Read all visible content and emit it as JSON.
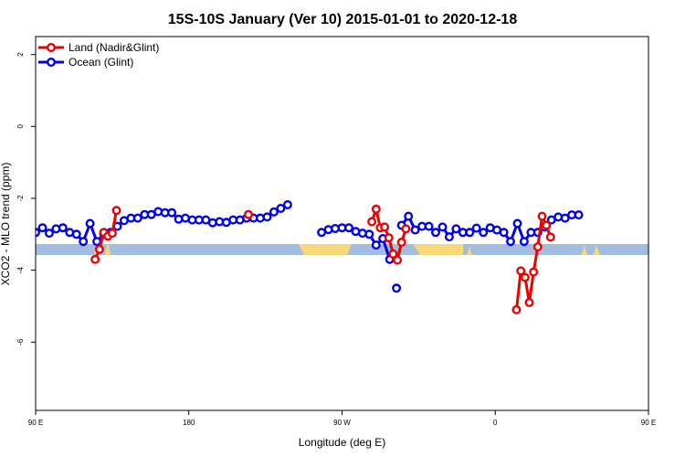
{
  "chart_data": {
    "type": "line",
    "title": "15S-10S January (Ver 10)   2015-01-01 to 2020-12-18",
    "xlabel": "Longitude (deg E)",
    "ylabel": "XCO2 - MLO trend (ppm)",
    "xlim": [
      90,
      450
    ],
    "ylim": [
      -7.9,
      2.5
    ],
    "x_ticks": [
      {
        "value": 90,
        "label": "90 E"
      },
      {
        "value": 180,
        "label": "180"
      },
      {
        "value": 270,
        "label": "90 W"
      },
      {
        "value": 360,
        "label": "0"
      },
      {
        "value": 450,
        "label": "90 E"
      },
      {
        "value": 540,
        "label": "180"
      }
    ],
    "y_ticks": [
      {
        "value": 2,
        "label": "2"
      },
      {
        "value": 0,
        "label": "0"
      },
      {
        "value": -2,
        "label": "-2"
      },
      {
        "value": -4,
        "label": "-4"
      },
      {
        "value": -6,
        "label": "-6"
      }
    ],
    "legend_position": "top-left",
    "colors": {
      "land": "#ee0000",
      "ocean": "#0000ee",
      "ocean_band": "#a2bde0",
      "land_band": "#f8d878"
    },
    "series": [
      {
        "name": "Land (Nadir&Glint)",
        "color": "#ee0000",
        "segments": [
          [
            [
              125,
              -3.7
            ],
            [
              127.5,
              -3.42
            ],
            [
              130,
              -2.95
            ],
            [
              132.5,
              -3.05
            ],
            [
              135,
              -2.97
            ],
            [
              137.5,
              -2.34
            ]
          ],
          [
            [
              215,
              -2.45
            ]
          ],
          [
            [
              287.5,
              -2.65
            ],
            [
              290,
              -2.3
            ],
            [
              292.5,
              -2.82
            ],
            [
              295,
              -2.8
            ],
            [
              297.5,
              -3.1
            ],
            [
              300,
              -3.55
            ],
            [
              302.5,
              -3.72
            ],
            [
              305,
              -3.22
            ],
            [
              307.5,
              -2.85
            ]
          ],
          [
            [
              372.5,
              -5.1
            ],
            [
              375,
              -4.02
            ],
            [
              377.5,
              -4.2
            ],
            [
              380,
              -4.9
            ],
            [
              382.5,
              -4.05
            ],
            [
              385,
              -3.35
            ],
            [
              387.5,
              -2.5
            ],
            [
              390,
              -2.75
            ],
            [
              392.5,
              -3.08
            ]
          ],
          [
            [
              468,
              -3.7
            ],
            [
              472,
              -3.4
            ],
            [
              476,
              -2.98
            ],
            [
              480,
              -2.9
            ],
            [
              484,
              -2.34
            ]
          ]
        ]
      },
      {
        "name": "Ocean (Glint)",
        "color": "#0000ee",
        "segments": [
          [
            [
              90,
              -2.95
            ],
            [
              94,
              -2.82
            ],
            [
              98,
              -2.97
            ],
            [
              102,
              -2.85
            ],
            [
              106,
              -2.82
            ],
            [
              110,
              -2.95
            ],
            [
              114,
              -3.0
            ],
            [
              118,
              -3.2
            ],
            [
              122,
              -2.7
            ],
            [
              126,
              -3.2
            ],
            [
              130,
              -3.0
            ],
            [
              134,
              -2.95
            ],
            [
              138,
              -2.78
            ],
            [
              142,
              -2.62
            ],
            [
              146,
              -2.55
            ],
            [
              150,
              -2.55
            ],
            [
              154,
              -2.45
            ],
            [
              158,
              -2.45
            ],
            [
              162,
              -2.37
            ],
            [
              166,
              -2.4
            ],
            [
              170,
              -2.4
            ],
            [
              174,
              -2.58
            ],
            [
              178,
              -2.55
            ],
            [
              182,
              -2.6
            ],
            [
              186,
              -2.6
            ],
            [
              190,
              -2.6
            ],
            [
              194,
              -2.68
            ],
            [
              198,
              -2.65
            ],
            [
              202,
              -2.67
            ],
            [
              206,
              -2.6
            ],
            [
              210,
              -2.6
            ],
            [
              214,
              -2.55
            ],
            [
              218,
              -2.55
            ],
            [
              222,
              -2.55
            ],
            [
              226,
              -2.52
            ],
            [
              230,
              -2.38
            ],
            [
              234,
              -2.28
            ],
            [
              238,
              -2.18
            ]
          ],
          [
            [
              258,
              -2.95
            ],
            [
              262,
              -2.87
            ],
            [
              266,
              -2.84
            ],
            [
              270,
              -2.82
            ],
            [
              274,
              -2.82
            ],
            [
              278,
              -2.92
            ],
            [
              282,
              -2.97
            ],
            [
              286,
              -3.0
            ],
            [
              290,
              -3.3
            ],
            [
              294,
              -3.12
            ],
            [
              298,
              -3.7
            ]
          ],
          [
            [
              302,
              -4.5
            ]
          ],
          [
            [
              305,
              -2.75
            ],
            [
              309,
              -2.5
            ],
            [
              313,
              -2.88
            ],
            [
              317,
              -2.78
            ],
            [
              321,
              -2.78
            ],
            [
              325,
              -2.95
            ],
            [
              329,
              -2.8
            ],
            [
              333,
              -3.07
            ],
            [
              337,
              -2.85
            ],
            [
              341,
              -2.95
            ],
            [
              345,
              -2.95
            ],
            [
              349,
              -2.83
            ],
            [
              353,
              -2.95
            ],
            [
              357,
              -2.82
            ],
            [
              361,
              -2.88
            ],
            [
              365,
              -2.95
            ],
            [
              369,
              -3.2
            ],
            [
              373,
              -2.7
            ],
            [
              377,
              -3.2
            ],
            [
              381,
              -2.95
            ],
            [
              385,
              -2.95
            ],
            [
              389,
              -2.8
            ],
            [
              393,
              -2.6
            ],
            [
              397,
              -2.52
            ],
            [
              401,
              -2.55
            ],
            [
              405,
              -2.46
            ],
            [
              409,
              -2.46
            ]
          ]
        ]
      }
    ]
  }
}
